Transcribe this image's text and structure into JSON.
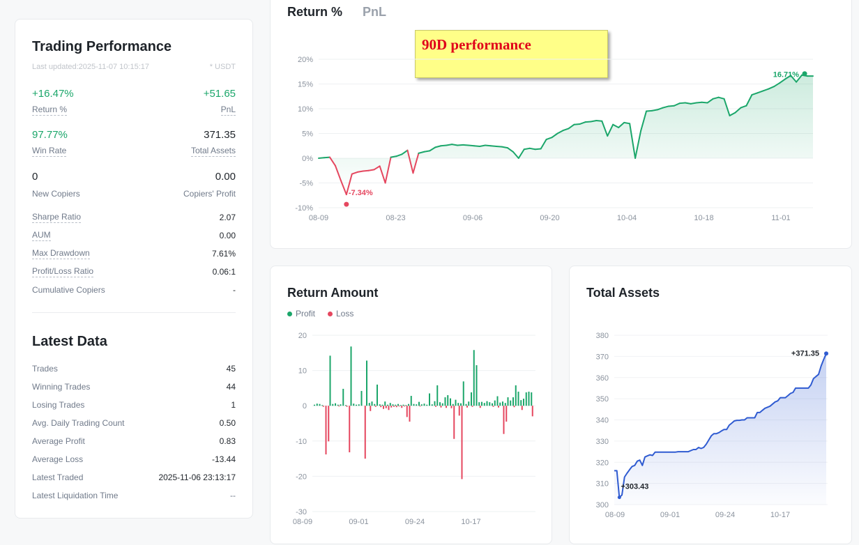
{
  "performance": {
    "title": "Trading Performance",
    "last_updated": "Last updated:2025-11-07 10:15:17",
    "currency": "* USDT",
    "return_pct": "+16.47%",
    "return_label": "Return %",
    "pnl": "+51.65",
    "pnl_label": "PnL",
    "win_rate": "97.77%",
    "win_rate_label": "Win Rate",
    "total_assets": "371.35",
    "total_assets_label": "Total Assets",
    "new_copiers": "0",
    "new_copiers_label": "New Copiers",
    "copiers_profit": "0.00",
    "copiers_profit_label": "Copiers' Profit",
    "metrics": [
      {
        "label": "Sharpe Ratio",
        "value": "2.07"
      },
      {
        "label": "AUM",
        "value": "0.00"
      },
      {
        "label": "Max Drawdown",
        "value": "7.61%"
      },
      {
        "label": "Profit/Loss Ratio",
        "value": "0.06:1"
      },
      {
        "label": "Cumulative Copiers",
        "value": "-"
      }
    ]
  },
  "latest": {
    "title": "Latest Data",
    "rows": [
      {
        "label": "Trades",
        "value": "45"
      },
      {
        "label": "Winning Trades",
        "value": "44"
      },
      {
        "label": "Losing Trades",
        "value": "1"
      },
      {
        "label": "Avg. Daily Trading Count",
        "value": "0.50"
      },
      {
        "label": "Average Profit",
        "value": "0.83"
      },
      {
        "label": "Average Loss",
        "value": "-13.44"
      },
      {
        "label": "Latest Traded",
        "value": "2025-11-06 23:13:17"
      },
      {
        "label": "Latest Liquidation Time",
        "value": "--"
      }
    ]
  },
  "return_chart": {
    "tab_active": "Return %",
    "tab_inactive": "PnL",
    "note": "90D performance"
  },
  "amount_chart": {
    "title": "Return Amount",
    "legend_profit": "Profit",
    "legend_loss": "Loss"
  },
  "assets_chart": {
    "title": "Total Assets"
  },
  "colors": {
    "profit": "#1ba66a",
    "loss": "#e5475f",
    "assets": "#2f5bd1"
  },
  "chart_data": [
    {
      "type": "line",
      "title": "Return %",
      "x_ticks": [
        "08-09",
        "08-23",
        "09-06",
        "09-20",
        "10-04",
        "10-18",
        "11-01"
      ],
      "y_ticks": [
        "20%",
        "15%",
        "10%",
        "5%",
        "0%",
        "-5%",
        "-10%"
      ],
      "ylim": [
        -10,
        20
      ],
      "x": [
        0,
        1,
        2,
        3,
        4,
        5,
        6,
        7,
        8,
        9,
        10,
        11,
        12,
        13,
        14,
        15,
        16,
        17,
        18,
        19,
        20,
        21,
        22,
        23,
        24,
        25,
        26,
        27,
        28,
        29,
        30,
        31,
        32,
        33,
        34,
        35,
        36,
        37,
        38,
        39,
        40,
        41,
        42,
        43,
        44,
        45,
        46,
        47,
        48,
        49,
        50,
        51,
        52,
        53,
        54,
        55,
        56,
        57,
        58,
        59,
        60,
        61,
        62,
        63,
        64,
        65,
        66,
        67,
        68,
        69,
        70,
        71,
        72,
        73,
        74,
        75,
        76,
        77,
        78,
        79,
        80,
        81,
        82,
        83,
        84,
        85,
        86,
        87,
        88,
        89
      ],
      "values": [
        0,
        0.1,
        0.2,
        -1.5,
        -4.5,
        -7.34,
        -3.2,
        -2.8,
        -2.6,
        -2.5,
        -2.3,
        -1.6,
        -5.0,
        0.2,
        0.4,
        0.8,
        1.6,
        -3.0,
        1.0,
        1.3,
        1.5,
        2.2,
        2.5,
        2.6,
        2.8,
        2.6,
        2.7,
        2.6,
        2.5,
        2.4,
        2.6,
        2.5,
        2.4,
        2.3,
        2.1,
        1.3,
        0.0,
        1.8,
        2.0,
        1.8,
        1.9,
        3.8,
        4.2,
        5.0,
        5.6,
        6.0,
        6.8,
        6.9,
        7.3,
        7.4,
        7.6,
        7.5,
        4.5,
        6.8,
        6.2,
        7.2,
        7.0,
        0.0,
        5.5,
        9.5,
        9.6,
        9.8,
        10.2,
        10.5,
        10.6,
        11.1,
        11.2,
        11.0,
        11.2,
        11.3,
        11.2,
        12.0,
        12.3,
        12.0,
        8.6,
        9.2,
        10.2,
        10.6,
        12.8,
        13.2,
        13.6,
        14.0,
        14.5,
        15.2,
        16.0,
        16.71,
        15.4,
        16.8,
        16.6,
        16.6
      ],
      "annotations": [
        {
          "label": "-7.34%",
          "value": -7.34
        },
        {
          "label": "16.71%",
          "value": 16.71
        }
      ]
    },
    {
      "type": "bar",
      "title": "Return Amount",
      "x_ticks": [
        "08-09",
        "09-01",
        "09-24",
        "10-17"
      ],
      "y_ticks": [
        "20",
        "10",
        "0",
        "-10",
        "-20",
        "-30"
      ],
      "ylim": [
        -30,
        20
      ],
      "series": [
        {
          "name": "Profit",
          "values": [
            0.3,
            0.6,
            0.5,
            0.2,
            0,
            0,
            14.2,
            0.5,
            0.7,
            0.3,
            0.4,
            4.8,
            0.2,
            0,
            16.8,
            0.6,
            0.3,
            0.4,
            4.2,
            0,
            12.8,
            0.8,
            1.2,
            0.5,
            6.0,
            0.4,
            0.3,
            1.2,
            0.3,
            0.8,
            0.4,
            0.3,
            0.5,
            0.2,
            0.3,
            0.2,
            0.5,
            2.8,
            0.5,
            0.4,
            1.1,
            0.4,
            0.6,
            0.3,
            3.5,
            0.4,
            1.3,
            5.8,
            1.0,
            0.7,
            2.4,
            3.0,
            2.1,
            0.5,
            1.7,
            0.8,
            0.7,
            6.9,
            0.5,
            1.2,
            3.8,
            15.8,
            11.5,
            1.0,
            1.1,
            0.8,
            1.3,
            1.0,
            0.7,
            1.5,
            2.7,
            0.9,
            1.2,
            0.8,
            2.4,
            1.5,
            2.4,
            5.8,
            4.0,
            1.6,
            2.0,
            3.8,
            4.0,
            3.8
          ]
        },
        {
          "name": "Loss",
          "values": [
            0,
            0,
            0,
            -0.3,
            -13.8,
            -10.1,
            0,
            0,
            0,
            -0.2,
            0,
            0,
            -0.3,
            -13.2,
            0,
            0,
            0,
            0,
            0,
            -15.0,
            0,
            -1.5,
            0,
            -0.3,
            0,
            -0.4,
            -0.9,
            -0.7,
            -1.2,
            -0.5,
            -0.3,
            -0.4,
            -0.2,
            -0.6,
            -0.2,
            -3.2,
            -4.5,
            0,
            0,
            0,
            -0.2,
            0,
            0,
            0,
            0,
            0,
            -0.3,
            0,
            -0.5,
            0,
            -0.6,
            0,
            -0.7,
            -9.4,
            0,
            -2.8,
            -20.8,
            0,
            -0.5,
            0,
            -0.3,
            0,
            0,
            -0.6,
            0,
            0,
            0,
            0,
            -0.3,
            0,
            -0.5,
            0,
            -8.0,
            -4.5,
            0,
            0,
            -0.4,
            0,
            0,
            -1.2,
            0,
            0,
            0,
            -3.0
          ]
        }
      ]
    },
    {
      "type": "area",
      "title": "Total Assets",
      "x_ticks": [
        "08-09",
        "09-01",
        "09-24",
        "10-17"
      ],
      "y_ticks": [
        "380",
        "370",
        "360",
        "350",
        "340",
        "330",
        "320",
        "310",
        "300"
      ],
      "ylim": [
        300,
        380
      ],
      "values": [
        316.0,
        316.0,
        303.43,
        304.5,
        313.0,
        314.8,
        316.5,
        318.0,
        318.5,
        320.5,
        321.0,
        318.5,
        322.5,
        323.0,
        323.5,
        323.2,
        324.8,
        324.8,
        324.8,
        324.8,
        324.8,
        324.8,
        324.8,
        324.8,
        324.8,
        325.0,
        325.0,
        325.0,
        325.0,
        325.0,
        325.5,
        326.0,
        326.0,
        327.0,
        326.5,
        327.0,
        328.5,
        330.5,
        332.5,
        333.5,
        333.5,
        334.0,
        334.8,
        335.5,
        335.5,
        337.5,
        338.5,
        339.5,
        339.8,
        339.8,
        340.0,
        340.0,
        341.0,
        341.0,
        341.0,
        341.0,
        343.5,
        343.5,
        344.5,
        345.5,
        346.0,
        346.5,
        347.5,
        348.5,
        349.0,
        350.5,
        350.5,
        350.5,
        351.5,
        352.5,
        353.0,
        355.0,
        355.0,
        355.0,
        355.0,
        355.0,
        355.0,
        356.5,
        359.5,
        360.5,
        361.5,
        365.5,
        368.5,
        371.35
      ],
      "annotations": [
        {
          "label": "+303.43",
          "value": 303.43
        },
        {
          "label": "+371.35",
          "value": 371.35
        }
      ]
    }
  ]
}
